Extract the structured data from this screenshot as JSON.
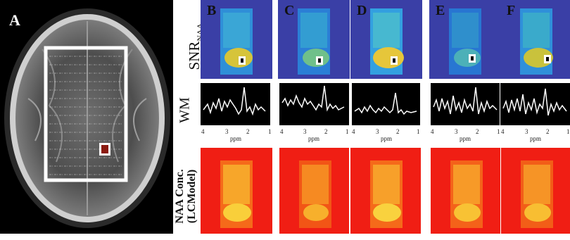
{
  "panels": {
    "a": "A",
    "b": "B",
    "c": "C",
    "d": "D",
    "e": "E",
    "f": "F"
  },
  "row_labels": {
    "snr_main": "SNR",
    "snr_sub": "NAA",
    "wm": "WM",
    "naa_line1": "NAA Conc.",
    "naa_line2": "(LCModel)"
  },
  "spectrum_axis": {
    "ticks": [
      "4",
      "3",
      "2",
      "1"
    ],
    "unit": "ppm"
  },
  "colors": {
    "snr_background": "#3a3fa6",
    "naa_background": "#f01e14",
    "voxel_marker": "#8b1a10"
  }
}
